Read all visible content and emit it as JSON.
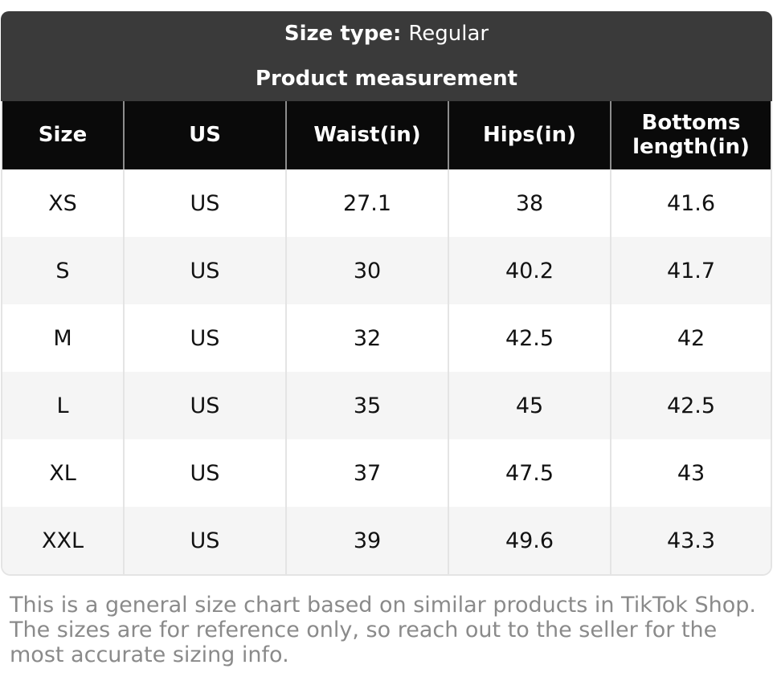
{
  "header": {
    "size_type_label": "Size type:",
    "size_type_value": "Regular",
    "title": "Product measurement"
  },
  "table": {
    "columns": [
      "Size",
      "US",
      "Waist(in)",
      "Hips(in)",
      "Bottoms length(in)"
    ],
    "rows": [
      [
        "XS",
        "US",
        "27.1",
        "38",
        "41.6"
      ],
      [
        "S",
        "US",
        "30",
        "40.2",
        "41.7"
      ],
      [
        "M",
        "US",
        "32",
        "42.5",
        "42"
      ],
      [
        "L",
        "US",
        "35",
        "45",
        "42.5"
      ],
      [
        "XL",
        "US",
        "37",
        "47.5",
        "43"
      ],
      [
        "XXL",
        "US",
        "39",
        "49.6",
        "43.3"
      ]
    ]
  },
  "footer": {
    "note": "This is a general size chart based on similar products in TikTok Shop. The sizes are for reference only, so reach out to the seller for the most accurate sizing info."
  },
  "colors": {
    "header_bg": "#3a3a3a",
    "table_header_bg": "#0a0a0a",
    "row_bg": "#ffffff",
    "row_alt_bg": "#f5f5f5",
    "divider": "#e4e4e4",
    "header_divider": "#8d8d8d",
    "text": "#121212",
    "note_text": "#8a8a8a",
    "border": "#e4e4e4"
  }
}
